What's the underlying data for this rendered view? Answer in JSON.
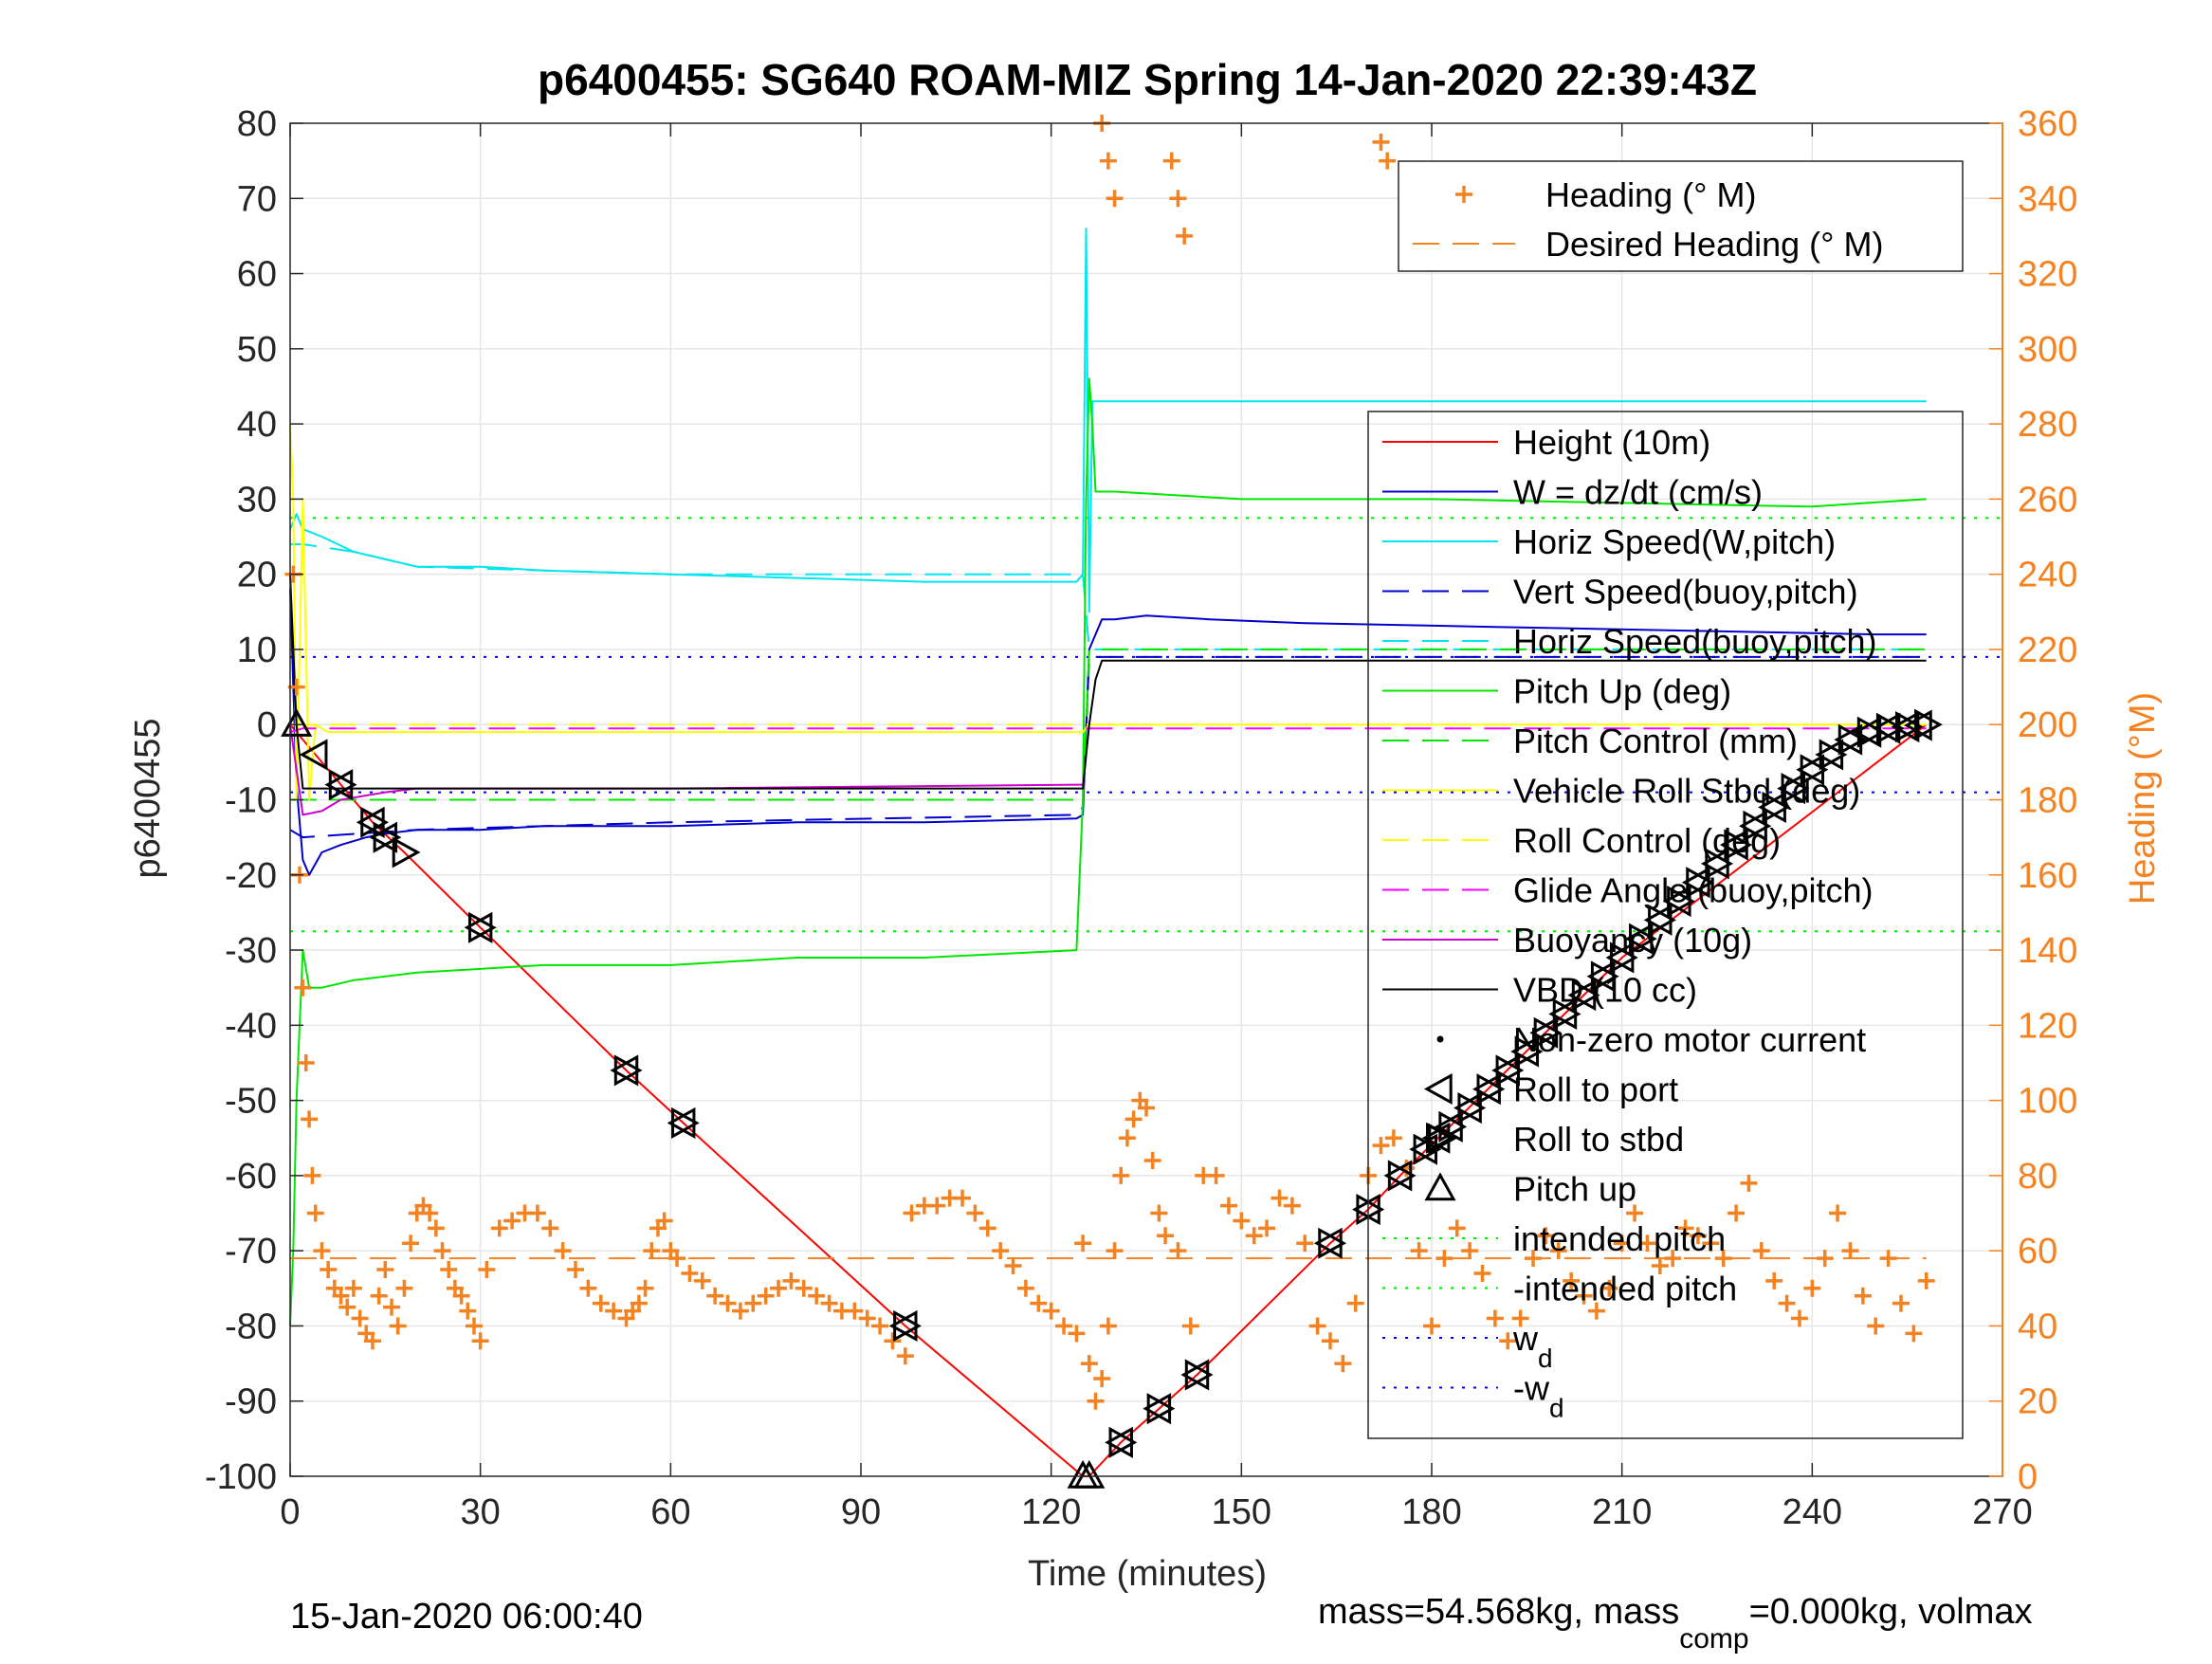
{
  "chart_data": {
    "type": "line",
    "title": "p6400455: SG640 ROAM-MIZ Spring 14-Jan-2020 22:39:43Z",
    "xlabel": "Time (minutes)",
    "ylabel_left": "p6400455",
    "ylabel_right": "Heading (°M)",
    "xlim": [
      0,
      270
    ],
    "ylim_left": [
      -100,
      80
    ],
    "ylim_right": [
      0,
      360
    ],
    "x_ticks": [
      0,
      30,
      60,
      90,
      120,
      150,
      180,
      210,
      240,
      270
    ],
    "x_tick_labels": [
      "0",
      "30",
      "60",
      "90",
      "120",
      "150",
      "180",
      "210",
      "240",
      "270"
    ],
    "y_ticks_left": [
      80,
      70,
      60,
      50,
      40,
      30,
      20,
      10,
      0,
      -10,
      -20,
      -30,
      -40,
      -50,
      -60,
      -70,
      -80,
      -90,
      -100
    ],
    "y_tick_labels_left": [
      "80",
      "70",
      "60",
      "50",
      "40",
      "30",
      "20",
      "10",
      "0",
      "-10",
      "-20",
      "-30",
      "-40",
      "-50",
      "-60",
      "-70",
      "-80",
      "-90",
      "-100"
    ],
    "y_ticks_right": [
      360,
      340,
      320,
      300,
      280,
      260,
      240,
      220,
      200,
      180,
      160,
      140,
      120,
      100,
      80,
      60,
      40,
      20,
      0
    ],
    "y_tick_labels_right": [
      "360",
      "340",
      "320",
      "300",
      "280",
      "260",
      "240",
      "220",
      "200",
      "180",
      "160",
      "140",
      "120",
      "100",
      "80",
      "60",
      "40",
      "20",
      "0"
    ],
    "grid": true,
    "footer_left": "15-Jan-2020 06:00:40",
    "footer_right_parts": [
      "mass=54.568kg, mass",
      "comp",
      "=0.000kg, volmax"
    ],
    "legend_top": {
      "placement": "top-right",
      "entries": [
        {
          "label": "Heading (° M)",
          "color": "#f58220",
          "style": "plus"
        },
        {
          "label": "Desired Heading (° M)",
          "color": "#f58220",
          "style": "dashed"
        }
      ]
    },
    "legend_main": {
      "placement": "right",
      "entries": [
        {
          "label": "Height (10m)",
          "color": "#ff0000",
          "style": "solid"
        },
        {
          "label": "W = dz/dt (cm/s)",
          "color": "#0000cc",
          "style": "solid"
        },
        {
          "label": "Horiz Speed(W,pitch)",
          "color": "#00e5ee",
          "style": "solid"
        },
        {
          "label": "Vert Speed(buoy,pitch)",
          "color": "#0000cc",
          "style": "dashed"
        },
        {
          "label": "Horiz Speed(buoy,pitch)",
          "color": "#00e5ee",
          "style": "dashed"
        },
        {
          "label": "Pitch Up (deg)",
          "color": "#00e600",
          "style": "solid"
        },
        {
          "label": "Pitch Control (mm)",
          "color": "#00e600",
          "style": "dashed"
        },
        {
          "label": "Vehicle Roll Stbd (deg)",
          "color": "#ffff00",
          "style": "solid"
        },
        {
          "label": "Roll Control (deg)",
          "color": "#ffff00",
          "style": "dashed"
        },
        {
          "label": "Glide Angle (buoy,pitch)",
          "color": "#ff00ff",
          "style": "dashed"
        },
        {
          "label": "Buoyancy (10g)",
          "color": "#cc00cc",
          "style": "solid"
        },
        {
          "label": "VBD (10 cc)",
          "color": "#000000",
          "style": "solid"
        },
        {
          "label": "Non-zero motor current",
          "color": "#000000",
          "style": "dot"
        },
        {
          "label": "Roll to port",
          "color": "#000000",
          "style": "tri-left"
        },
        {
          "label": "Roll to stbd",
          "color": "#000000",
          "style": "tri-right"
        },
        {
          "label": "Pitch up",
          "color": "#000000",
          "style": "tri-up"
        },
        {
          "label": "intended pitch",
          "color": "#00e600",
          "style": "dotted"
        },
        {
          "label": "-intended pitch",
          "color": "#00e600",
          "style": "dotted"
        },
        {
          "label": "w",
          "sub": "d",
          "color": "#0000cc",
          "style": "dotted"
        },
        {
          "label": "-w",
          "sub": "d",
          "color": "#0000cc",
          "style": "dotted"
        }
      ]
    },
    "reference_lines": {
      "intended_pitch": 27.5,
      "neg_intended_pitch": -27.5,
      "w_d": 9,
      "neg_w_d": -9
    },
    "desired_heading_deg": 58,
    "series": [
      {
        "name": "Height (10m)",
        "axis": "left",
        "color": "#ff0000",
        "style": "solid",
        "x": [
          0,
          1,
          8,
          13,
          18,
          30,
          53,
          62,
          97,
          125,
          126,
          131,
          137,
          143,
          164,
          170,
          175,
          181,
          210,
          258
        ],
        "y": [
          0,
          -1,
          -8,
          -13,
          -17,
          -27,
          -46,
          -53,
          -80,
          -100,
          -100,
          -95.5,
          -91,
          -86.5,
          -69,
          -64.5,
          -60,
          -55,
          -31,
          0
        ]
      },
      {
        "name": "W = dz/dt (cm/s)",
        "axis": "left",
        "color": "#0000cc",
        "style": "solid",
        "x": [
          0,
          1,
          2,
          3,
          5,
          8,
          12,
          15,
          20,
          30,
          40,
          60,
          80,
          100,
          124,
          125,
          126,
          128,
          130,
          135,
          145,
          160,
          190,
          220,
          250,
          258
        ],
        "y": [
          18,
          -8,
          -18,
          -20,
          -17,
          -16,
          -15,
          -14.5,
          -14,
          -14,
          -13.5,
          -13.5,
          -13,
          -13,
          -12.5,
          -12,
          10,
          14,
          14,
          14.5,
          14,
          13.5,
          13,
          12.5,
          12,
          12
        ]
      },
      {
        "name": "Horiz Speed(W,pitch)",
        "axis": "left",
        "color": "#00e5ee",
        "style": "solid",
        "x": [
          0,
          1,
          2,
          5,
          10,
          15,
          20,
          30,
          40,
          60,
          80,
          100,
          124,
          125,
          125.5,
          126,
          126.5,
          127,
          130,
          258
        ],
        "y": [
          26,
          28,
          26,
          25,
          23,
          22,
          21,
          21,
          20.5,
          20,
          19.5,
          19,
          19,
          20,
          66,
          15,
          43,
          43,
          43,
          43
        ]
      },
      {
        "name": "Vert Speed(buoy,pitch)",
        "axis": "left",
        "color": "#0000cc",
        "style": "dashed",
        "x": [
          0,
          2,
          20,
          60,
          124,
          125,
          126,
          130,
          258
        ],
        "y": [
          -14,
          -15,
          -14,
          -13,
          -12,
          -11,
          9,
          9,
          9
        ]
      },
      {
        "name": "Horiz Speed(buoy,pitch)",
        "axis": "left",
        "color": "#00e5ee",
        "style": "dashed",
        "x": [
          0,
          2,
          10,
          20,
          60,
          124,
          125,
          126,
          130,
          258
        ],
        "y": [
          24,
          24,
          23,
          21,
          20,
          20,
          20,
          10,
          10,
          10
        ]
      },
      {
        "name": "Pitch Up (deg)",
        "axis": "left",
        "color": "#00e600",
        "style": "solid",
        "x": [
          0,
          0.5,
          1,
          1.5,
          2,
          3,
          5,
          10,
          20,
          40,
          60,
          80,
          100,
          124,
          125,
          125.5,
          126,
          126.5,
          127,
          130,
          150,
          180,
          210,
          240,
          258
        ],
        "y": [
          -80,
          -70,
          -50,
          -40,
          -30,
          -35,
          -35,
          -34,
          -33,
          -32,
          -32,
          -31,
          -31,
          -30,
          -10,
          30,
          46,
          40,
          31,
          31,
          30,
          30,
          29.5,
          29,
          30
        ]
      },
      {
        "name": "Pitch Control (mm)",
        "axis": "left",
        "color": "#00e600",
        "style": "dashed",
        "x": [
          0,
          2,
          124,
          125,
          126,
          130,
          258
        ],
        "y": [
          -10,
          -10,
          -10,
          -10,
          10,
          10,
          10
        ]
      },
      {
        "name": "Vehicle Roll Stbd (deg)",
        "axis": "left",
        "color": "#ffff00",
        "style": "solid",
        "x": [
          0,
          0.5,
          1,
          2,
          3,
          4,
          6,
          10,
          20,
          30,
          60,
          90,
          124,
          125,
          126,
          130,
          160,
          190,
          220,
          258
        ],
        "y": [
          40,
          30,
          -10,
          30,
          -10,
          0,
          -1,
          -1,
          -1,
          -1,
          -1,
          -1,
          -1,
          -1,
          0,
          0,
          0,
          0,
          0,
          0
        ]
      },
      {
        "name": "Roll Control (deg)",
        "axis": "left",
        "color": "#ffff00",
        "style": "dashed",
        "x": [
          0,
          2,
          124,
          125,
          126,
          258
        ],
        "y": [
          0,
          0,
          0,
          0,
          0,
          0
        ]
      },
      {
        "name": "Glide Angle (buoy,pitch)",
        "axis": "left",
        "color": "#ff00ff",
        "style": "dashed",
        "x": [
          0,
          2,
          124,
          125,
          126,
          258
        ],
        "y": [
          -1,
          -0.5,
          -0.5,
          -0.5,
          -0.5,
          -0.5
        ]
      },
      {
        "name": "Buoyancy (10g)",
        "axis": "left",
        "color": "#cc00cc",
        "style": "solid",
        "x": [
          0,
          2,
          5,
          8,
          15,
          20,
          60,
          124,
          125
        ],
        "y": [
          0,
          -12,
          -11.5,
          -10,
          -9,
          -8.5,
          -8.5,
          -8,
          -8
        ]
      },
      {
        "name": "VBD (10 cc)",
        "axis": "left",
        "color": "#000000",
        "style": "solid",
        "x": [
          0,
          1,
          2,
          124,
          125,
          126,
          127,
          128,
          258
        ],
        "y": [
          20,
          0,
          -8.5,
          -8.5,
          -8.5,
          0,
          6,
          8.5,
          8.5
        ]
      },
      {
        "name": "Heading (° M)",
        "axis": "right",
        "color": "#f58220",
        "style": "plus",
        "x": [
          0.5,
          1,
          1.5,
          2,
          2.5,
          3,
          3.5,
          4,
          5,
          6,
          7,
          8,
          9,
          10,
          11,
          12,
          13,
          14,
          15,
          16,
          17,
          18,
          19,
          20,
          21,
          22,
          23,
          24,
          25,
          26,
          27,
          28,
          29,
          30,
          31,
          33,
          35,
          37,
          39,
          41,
          43,
          45,
          47,
          49,
          51,
          53,
          54,
          55,
          56,
          57,
          58,
          59,
          60,
          61,
          63,
          65,
          67,
          69,
          71,
          73,
          75,
          77,
          79,
          81,
          83,
          85,
          87,
          89,
          91,
          93,
          95,
          97,
          98,
          100,
          102,
          104,
          106,
          108,
          110,
          112,
          114,
          116,
          118,
          120,
          122,
          124,
          125,
          126,
          127,
          128,
          129,
          130,
          131,
          132,
          133,
          134,
          135,
          136,
          137,
          138,
          140,
          142,
          144,
          146,
          148,
          150,
          152,
          154,
          156,
          158,
          160,
          162,
          164,
          166,
          168,
          170,
          172,
          174,
          176,
          178,
          180,
          182,
          184,
          186,
          188,
          190,
          192,
          194,
          196,
          198,
          200,
          202,
          204,
          206,
          208,
          210,
          212,
          214,
          216,
          218,
          220,
          222,
          224,
          226,
          228,
          230,
          232,
          234,
          236,
          238,
          240,
          242,
          244,
          246,
          248,
          250,
          252,
          254,
          256,
          258,
          128,
          129,
          130,
          139,
          140,
          141,
          172,
          173
        ],
        "y": [
          240,
          210,
          160,
          130,
          110,
          95,
          80,
          70,
          60,
          55,
          50,
          48,
          45,
          50,
          42,
          38,
          36,
          48,
          55,
          45,
          40,
          50,
          62,
          70,
          72,
          70,
          66,
          60,
          55,
          50,
          48,
          44,
          40,
          36,
          55,
          66,
          68,
          70,
          70,
          66,
          60,
          55,
          50,
          46,
          44,
          42,
          44,
          46,
          50,
          60,
          66,
          68,
          60,
          58,
          54,
          52,
          48,
          46,
          44,
          46,
          48,
          50,
          52,
          50,
          48,
          46,
          44,
          44,
          42,
          40,
          36,
          32,
          70,
          72,
          72,
          74,
          74,
          70,
          66,
          60,
          56,
          50,
          46,
          44,
          40,
          38,
          62,
          30,
          20,
          26,
          40,
          60,
          80,
          90,
          95,
          100,
          98,
          84,
          70,
          64,
          60,
          40,
          80,
          80,
          72,
          68,
          64,
          66,
          74,
          72,
          62,
          40,
          36,
          30,
          46,
          80,
          88,
          90,
          82,
          60,
          40,
          58,
          66,
          60,
          54,
          42,
          36,
          42,
          58,
          64,
          60,
          52,
          48,
          44,
          50,
          62,
          70,
          62,
          56,
          58,
          66,
          64,
          62,
          58,
          70,
          78,
          60,
          52,
          46,
          42,
          50,
          58,
          70,
          60,
          48,
          40,
          58,
          46,
          38,
          52,
          360,
          350,
          340,
          350,
          340,
          330,
          355,
          350
        ]
      },
      {
        "name": "Desired Heading (° M)",
        "axis": "right",
        "color": "#f58220",
        "style": "dashed",
        "x": [
          0,
          258
        ],
        "y": [
          58,
          58
        ]
      }
    ],
    "markers": {
      "pitch_up": {
        "x": [
          1,
          125,
          126
        ],
        "y": [
          0,
          -100,
          -100
        ]
      },
      "roll_to_port": {
        "x": [
          4,
          8,
          13,
          15,
          30,
          53,
          62,
          97,
          131,
          137,
          143,
          164,
          170,
          175,
          179,
          181,
          183,
          186,
          189,
          192,
          195,
          198,
          201,
          204,
          207,
          210,
          213,
          216,
          219,
          222,
          225,
          228,
          231,
          234,
          237,
          240,
          243,
          246,
          249,
          252,
          255,
          257
        ],
        "y": [
          -4,
          -8,
          -13,
          -15,
          -27,
          -46,
          -53,
          -80,
          -95.5,
          -91,
          -86.5,
          -69,
          -64.5,
          -60,
          -56.5,
          -55,
          -53.5,
          -51,
          -48.5,
          -46,
          -43.5,
          -41,
          -38.5,
          -36,
          -33.5,
          -31,
          -28.5,
          -26,
          -23.5,
          -21,
          -18.5,
          -16,
          -13.5,
          -11,
          -8.5,
          -6,
          -4,
          -2,
          -1,
          -0.5,
          -0.3,
          -0.1
        ]
      },
      "roll_to_stbd": {
        "x": [
          8,
          13,
          15,
          18,
          30,
          53,
          62,
          97,
          131,
          137,
          143,
          164,
          170,
          175,
          179,
          181,
          183,
          186,
          189,
          192,
          195,
          198,
          201,
          204,
          207,
          210,
          213,
          216,
          219,
          222,
          225,
          228,
          231,
          234,
          237,
          240,
          243,
          246,
          249,
          252,
          255,
          258
        ],
        "y": [
          -8,
          -13,
          -15,
          -17,
          -27,
          -46,
          -53,
          -80,
          -95.5,
          -91,
          -86.5,
          -69,
          -64.5,
          -60,
          -56.5,
          -55,
          -53.5,
          -51,
          -48.5,
          -46,
          -43.5,
          -41,
          -38.5,
          -36,
          -33.5,
          -31,
          -28.5,
          -26,
          -23.5,
          -21,
          -18.5,
          -16,
          -13.5,
          -11,
          -8.5,
          -6,
          -4,
          -2,
          -1,
          -0.5,
          -0.3,
          0
        ]
      }
    }
  }
}
